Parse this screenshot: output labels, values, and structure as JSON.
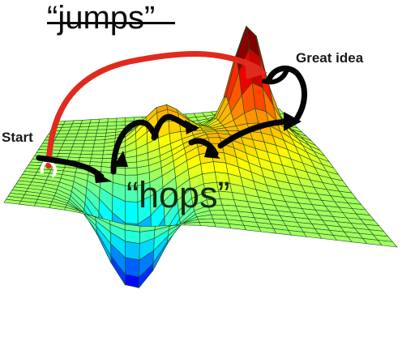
{
  "labels": {
    "jumps": "“jumps”",
    "start": "Start",
    "great_idea": "Great idea",
    "hops": "“hops”"
  },
  "colors": {
    "jump_arrow": "#e02a1e",
    "hop_arrows": "#050505",
    "mesh_lines": "#1d4f1d"
  },
  "surface": {
    "colormap": "jet",
    "mesh": true
  }
}
